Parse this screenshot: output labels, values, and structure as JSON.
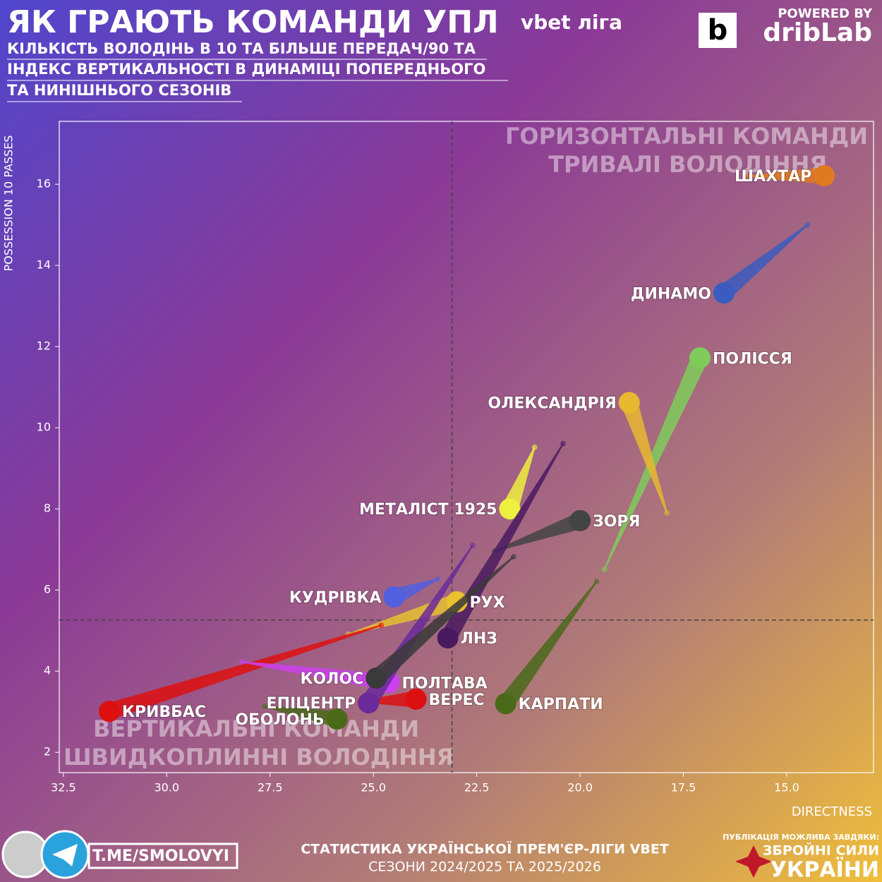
{
  "header": {
    "title": "ЯК ГРАЮТЬ КОМАНДИ УПЛ",
    "league_logo": "vbet ліга",
    "subtitle": [
      "КІЛЬКІСТЬ ВОЛОДІНЬ В 10 ТА БІЛЬШЕ ПЕРЕДАЧ/90 ТА",
      "ІНДЕКС ВЕРТИКАЛЬНОСТІ В ДИНАМІЦІ ПОПЕРЕДНЬОГО",
      "ТА НИНІШНЬОГО СЕЗОНІВ"
    ],
    "powered_by": "POWERED BY",
    "brand": "dribLab"
  },
  "chart_data": {
    "type": "arrow-scatter",
    "x_label": "DIRECTNESS",
    "y_label": "POSSESSION 10 PASSES",
    "xlim": [
      32.6,
      12.9
    ],
    "ylim": [
      1.5,
      17.55
    ],
    "xticks": [
      {
        "value": 32.5,
        "label": "32.5"
      },
      {
        "value": 30,
        "label": "30.0"
      },
      {
        "value": 27.5,
        "label": "27.5"
      },
      {
        "value": 25,
        "label": "25.0"
      },
      {
        "value": 22.5,
        "label": "22.5"
      },
      {
        "value": 20,
        "label": "20.0"
      },
      {
        "value": 17.5,
        "label": "17.5"
      },
      {
        "value": 15,
        "label": "15.0"
      }
    ],
    "yticks": [
      2,
      4,
      6,
      8,
      10,
      12,
      14,
      16
    ],
    "quadrant_x": 23.1,
    "quadrant_y": 5.26,
    "annotations": [
      [
        "ГОРИЗОНТАЛЬНІ КОМАНДИ",
        "ТРИВАЛІ ВОЛОДІННЯ"
      ],
      [
        "ВЕРТИКАЛЬНІ КОМАНДИ",
        "ШВИДКОПЛИННІ ВОЛОДІННЯ"
      ]
    ],
    "series": [
      {
        "name": "ШАХТАР",
        "color": "#e07a20",
        "x": [
          16.0,
          14.09
        ],
        "y": [
          16.2,
          16.21
        ]
      },
      {
        "name": "ДИНАМО",
        "color": "#3a5cc0",
        "x": [
          14.5,
          16.52
        ],
        "y": [
          15.0,
          13.32
        ]
      },
      {
        "name": "ПОЛІССЯ",
        "color": "#7fcc5a",
        "x": [
          19.41,
          17.1
        ],
        "y": [
          6.51,
          11.72
        ]
      },
      {
        "name": "ОЛЕКСАНДРІЯ",
        "color": "#e8b830",
        "x": [
          17.9,
          18.81
        ],
        "y": [
          7.9,
          10.62
        ]
      },
      {
        "name": "МЕТАЛІСТ 1925",
        "color": "#eef040",
        "x": [
          21.1,
          21.7
        ],
        "y": [
          9.52,
          8.0
        ]
      },
      {
        "name": "ЗОРЯ",
        "color": "#444444",
        "x": [
          22.07,
          20.0
        ],
        "y": [
          6.96,
          7.71
        ]
      },
      {
        "name": "ЛНЗ",
        "color": "#4a1a60",
        "x": [
          20.41,
          23.2
        ],
        "y": [
          9.61,
          4.82
        ]
      },
      {
        "name": "РУХ",
        "color": "#e8c030",
        "x": [
          25.61,
          22.98
        ],
        "y": [
          4.91,
          5.71
        ]
      },
      {
        "name": "КУДРІВКА",
        "color": "#5060e0",
        "x": [
          23.44,
          24.5
        ],
        "y": [
          6.27,
          5.83
        ]
      },
      {
        "name": "КРИВБАС",
        "color": "#dd1010",
        "x": [
          24.81,
          31.39
        ],
        "y": [
          5.13,
          3.01
        ]
      },
      {
        "name": "ПОЛТАВА",
        "color": "#cc40f0",
        "x": [
          28.19,
          24.62
        ],
        "y": [
          4.23,
          3.72
        ]
      },
      {
        "name": "ВЕРЕС",
        "color": "#dd1010",
        "x": [
          25.32,
          23.97
        ],
        "y": [
          3.25,
          3.31
        ]
      },
      {
        "name": "ЕПІЦЕНТР",
        "color": "#6a2a9a",
        "x": [
          22.6,
          25.12
        ],
        "y": [
          7.1,
          3.22
        ]
      },
      {
        "name": "ОБОЛОНЬ",
        "color": "#4a6a1a",
        "x": [
          27.63,
          25.88
        ],
        "y": [
          3.13,
          2.82
        ]
      },
      {
        "name": "КАРПАТИ",
        "color": "#4a6a1a",
        "x": [
          19.6,
          21.8
        ],
        "y": [
          6.21,
          3.2
        ]
      },
      {
        "name": "КОЛОС",
        "color": "#3a3a3a",
        "x": [
          21.61,
          24.93
        ],
        "y": [
          6.82,
          3.83
        ]
      }
    ]
  },
  "footer": {
    "link": "T.ME/SMOLOVYI",
    "stats_line": "СТАТИСТИКА УКРАЇНСЬКОЇ ПРЕМ'ЄР-ЛІГИ VBET",
    "seasons_line": "СЕЗОНИ 2024/2025 ТА 2025/2026",
    "thanks": "ПУБЛІКАЦІЯ МОЖЛИВА ЗАВДЯКИ:",
    "army": [
      "ЗБРОЙНІ СИЛИ",
      "УКРАЇНИ"
    ]
  }
}
